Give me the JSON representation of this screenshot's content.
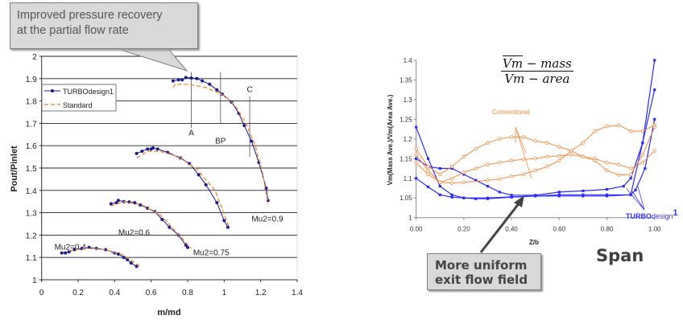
{
  "callouts": {
    "top": [
      "Improved pressure recovery",
      "at the partial flow rate"
    ],
    "bottom": [
      "More uniform",
      "exit flow field"
    ],
    "span": "Span"
  },
  "colors": {
    "turbodesign": "#1a1a8c",
    "standard": "#f58a3a",
    "td_right": "#2a2aff",
    "conventional": "#f58a3a",
    "callout_bg": "#d9d9d9"
  },
  "chart_data": [
    {
      "type": "line",
      "xlabel": "m/md",
      "ylabel": "Pout/Pinlet",
      "xlim": [
        0,
        1.4
      ],
      "ylim": [
        1,
        2
      ],
      "xticks": [
        "0",
        "0.2",
        "0.4",
        "0.6",
        "0.8",
        "1",
        "1.2",
        "1.4"
      ],
      "yticks": [
        "1",
        "1.1",
        "1.2",
        "1.3",
        "1.4",
        "1.5",
        "1.6",
        "1.7",
        "1.8",
        "1.9",
        "2"
      ],
      "grid": "horizontal",
      "legend": {
        "placement": "top-left",
        "entries": [
          "TURBOdesign1",
          "Standard"
        ]
      },
      "annotations": [
        {
          "text": "A",
          "x": 0.82,
          "y_range": [
            1.68,
            1.93
          ]
        },
        {
          "text": "BP",
          "x": 0.98,
          "y_range": [
            1.7,
            1.93
          ]
        },
        {
          "text": "C",
          "x": 1.14,
          "y_range": [
            1.55,
            1.82
          ]
        }
      ],
      "speed_labels": [
        {
          "text": "Mu2=0.9",
          "x": 1.15,
          "y": 1.26
        },
        {
          "text": "Mu2=0.75",
          "x": 0.83,
          "y": 1.11
        },
        {
          "text": "Mu2=0.6",
          "x": 0.42,
          "y": 1.2
        },
        {
          "text": "Mu2=0.4",
          "x": 0.07,
          "y": 1.135
        }
      ],
      "series": [
        {
          "name": "TURBOdesign1",
          "group": "Mu2=0.9",
          "points": [
            [
              0.72,
              1.89
            ],
            [
              0.75,
              1.895
            ],
            [
              0.77,
              1.895
            ],
            [
              0.79,
              1.905
            ],
            [
              0.82,
              1.903
            ],
            [
              0.85,
              1.9
            ],
            [
              0.88,
              1.89
            ],
            [
              0.92,
              1.875
            ],
            [
              0.96,
              1.85
            ],
            [
              0.99,
              1.83
            ],
            [
              1.04,
              1.795
            ],
            [
              1.08,
              1.745
            ],
            [
              1.11,
              1.69
            ],
            [
              1.15,
              1.62
            ],
            [
              1.19,
              1.525
            ],
            [
              1.23,
              1.41
            ],
            [
              1.24,
              1.355
            ]
          ]
        },
        {
          "name": "Standard",
          "group": "Mu2=0.9",
          "points": [
            [
              0.72,
              1.86
            ],
            [
              0.73,
              1.875
            ],
            [
              0.8,
              1.875
            ],
            [
              0.9,
              1.86
            ],
            [
              1.0,
              1.825
            ],
            [
              1.06,
              1.78
            ],
            [
              1.12,
              1.7
            ],
            [
              1.17,
              1.6
            ],
            [
              1.21,
              1.48
            ],
            [
              1.24,
              1.34
            ]
          ]
        },
        {
          "name": "TURBOdesign1",
          "group": "Mu2=0.75",
          "points": [
            [
              0.52,
              1.565
            ],
            [
              0.55,
              1.575
            ],
            [
              0.58,
              1.585
            ],
            [
              0.6,
              1.585
            ],
            [
              0.61,
              1.59
            ],
            [
              0.635,
              1.585
            ],
            [
              0.69,
              1.57
            ],
            [
              0.76,
              1.545
            ],
            [
              0.81,
              1.52
            ],
            [
              0.86,
              1.47
            ],
            [
              0.9,
              1.425
            ],
            [
              0.96,
              1.345
            ],
            [
              1.0,
              1.265
            ],
            [
              1.02,
              1.235
            ]
          ]
        },
        {
          "name": "Standard",
          "group": "Mu2=0.75",
          "points": [
            [
              0.52,
              1.545
            ],
            [
              0.58,
              1.575
            ],
            [
              0.65,
              1.575
            ],
            [
              0.75,
              1.55
            ],
            [
              0.85,
              1.495
            ],
            [
              0.95,
              1.4
            ],
            [
              1.03,
              1.23
            ]
          ]
        },
        {
          "name": "TURBOdesign1",
          "group": "Mu2=0.6",
          "points": [
            [
              0.38,
              1.34
            ],
            [
              0.41,
              1.345
            ],
            [
              0.42,
              1.355
            ],
            [
              0.45,
              1.35
            ],
            [
              0.48,
              1.348
            ],
            [
              0.51,
              1.345
            ],
            [
              0.54,
              1.335
            ],
            [
              0.58,
              1.32
            ],
            [
              0.62,
              1.305
            ],
            [
              0.66,
              1.27
            ],
            [
              0.7,
              1.235
            ],
            [
              0.75,
              1.2
            ],
            [
              0.79,
              1.155
            ],
            [
              0.8,
              1.145
            ]
          ]
        },
        {
          "name": "Standard",
          "group": "Mu2=0.6",
          "points": [
            [
              0.38,
              1.33
            ],
            [
              0.45,
              1.35
            ],
            [
              0.55,
              1.335
            ],
            [
              0.65,
              1.29
            ],
            [
              0.72,
              1.23
            ],
            [
              0.82,
              1.14
            ]
          ]
        },
        {
          "name": "TURBOdesign1",
          "group": "Mu2=0.4",
          "points": [
            [
              0.11,
              1.12
            ],
            [
              0.13,
              1.12
            ],
            [
              0.15,
              1.125
            ],
            [
              0.18,
              1.135
            ],
            [
              0.22,
              1.14
            ],
            [
              0.26,
              1.145
            ],
            [
              0.3,
              1.14
            ],
            [
              0.35,
              1.135
            ],
            [
              0.4,
              1.12
            ],
            [
              0.42,
              1.115
            ],
            [
              0.45,
              1.1
            ],
            [
              0.47,
              1.09
            ],
            [
              0.49,
              1.075
            ],
            [
              0.52,
              1.06
            ]
          ]
        },
        {
          "name": "Standard",
          "group": "Mu2=0.4",
          "points": [
            [
              0.15,
              1.13
            ],
            [
              0.25,
              1.14
            ],
            [
              0.35,
              1.135
            ],
            [
              0.45,
              1.11
            ],
            [
              0.54,
              1.06
            ]
          ]
        }
      ]
    },
    {
      "type": "line",
      "xlabel": "Z/b",
      "ylabel": "Vm(Mass Ave.)/Vm(Area Ave.)",
      "xlim": [
        0,
        1
      ],
      "ylim": [
        1,
        1.4
      ],
      "xticks": [
        "0.00",
        "0.20",
        "0.40",
        "0.60",
        "0.80",
        "1.00"
      ],
      "yticks": [
        "1",
        "1.05",
        "1.1",
        "1.15",
        "1.2",
        "1.25",
        "1.3",
        "1.35",
        "1.4"
      ],
      "grid": "none",
      "formula": {
        "numerator_bar": "Vm",
        "numerator_rest": " − mass",
        "denominator_bar": "Vm",
        "denominator_rest": " − area"
      },
      "group_labels": {
        "conventional": "Conventional",
        "td_bold": "TURBO",
        "td_light": "design",
        "td_sup": "1"
      },
      "series": [
        {
          "group": "TURBOdesign1",
          "points": [
            [
              0,
              1.23
            ],
            [
              0.05,
              1.15
            ],
            [
              0.1,
              1.08
            ],
            [
              0.15,
              1.058
            ],
            [
              0.2,
              1.05
            ],
            [
              0.25,
              1.048
            ],
            [
              0.3,
              1.048
            ],
            [
              0.4,
              1.052
            ],
            [
              0.5,
              1.055
            ],
            [
              0.6,
              1.055
            ],
            [
              0.7,
              1.055
            ],
            [
              0.8,
              1.055
            ],
            [
              0.9,
              1.058
            ],
            [
              0.95,
              1.19
            ],
            [
              1.0,
              1.4
            ]
          ]
        },
        {
          "group": "TURBOdesign1",
          "points": [
            [
              0,
              1.15
            ],
            [
              0.05,
              1.13
            ],
            [
              0.1,
              1.125
            ],
            [
              0.15,
              1.125
            ],
            [
              0.2,
              1.11
            ],
            [
              0.25,
              1.095
            ],
            [
              0.3,
              1.08
            ],
            [
              0.35,
              1.065
            ],
            [
              0.4,
              1.057
            ],
            [
              0.5,
              1.057
            ],
            [
              0.6,
              1.065
            ],
            [
              0.7,
              1.068
            ],
            [
              0.8,
              1.072
            ],
            [
              0.87,
              1.08
            ],
            [
              0.9,
              1.1
            ],
            [
              0.95,
              1.19
            ],
            [
              1.0,
              1.325
            ]
          ]
        },
        {
          "group": "TURBOdesign1",
          "points": [
            [
              0,
              1.1
            ],
            [
              0.05,
              1.078
            ],
            [
              0.1,
              1.058
            ],
            [
              0.15,
              1.052
            ],
            [
              0.2,
              1.05
            ],
            [
              0.3,
              1.05
            ],
            [
              0.4,
              1.053
            ],
            [
              0.5,
              1.055
            ],
            [
              0.6,
              1.058
            ],
            [
              0.7,
              1.058
            ],
            [
              0.8,
              1.058
            ],
            [
              0.9,
              1.058
            ],
            [
              0.92,
              1.07
            ],
            [
              0.96,
              1.125
            ],
            [
              1.0,
              1.25
            ]
          ]
        },
        {
          "group": "Conventional",
          "points": [
            [
              0,
              1.175
            ],
            [
              0.05,
              1.13
            ],
            [
              0.1,
              1.11
            ],
            [
              0.15,
              1.13
            ],
            [
              0.2,
              1.155
            ],
            [
              0.25,
              1.175
            ],
            [
              0.3,
              1.19
            ],
            [
              0.35,
              1.2
            ],
            [
              0.4,
              1.205
            ],
            [
              0.45,
              1.205
            ],
            [
              0.5,
              1.195
            ],
            [
              0.55,
              1.19
            ],
            [
              0.6,
              1.18
            ],
            [
              0.65,
              1.17
            ],
            [
              0.7,
              1.155
            ],
            [
              0.75,
              1.15
            ],
            [
              0.8,
              1.14
            ],
            [
              0.85,
              1.135
            ],
            [
              0.9,
              1.125
            ],
            [
              0.95,
              1.14
            ],
            [
              1.0,
              1.17
            ]
          ]
        },
        {
          "group": "Conventional",
          "points": [
            [
              0,
              1.16
            ],
            [
              0.05,
              1.12
            ],
            [
              0.1,
              1.09
            ],
            [
              0.15,
              1.088
            ],
            [
              0.2,
              1.09
            ],
            [
              0.3,
              1.095
            ],
            [
              0.35,
              1.098
            ],
            [
              0.4,
              1.105
            ],
            [
              0.45,
              1.11
            ],
            [
              0.5,
              1.12
            ],
            [
              0.55,
              1.13
            ],
            [
              0.6,
              1.145
            ],
            [
              0.65,
              1.17
            ],
            [
              0.7,
              1.19
            ],
            [
              0.75,
              1.22
            ],
            [
              0.8,
              1.232
            ],
            [
              0.85,
              1.235
            ],
            [
              0.9,
              1.22
            ],
            [
              0.95,
              1.22
            ],
            [
              1.0,
              1.235
            ]
          ]
        },
        {
          "group": "Conventional",
          "points": [
            [
              0,
              1.14
            ],
            [
              0.05,
              1.11
            ],
            [
              0.1,
              1.09
            ],
            [
              0.15,
              1.1
            ],
            [
              0.2,
              1.115
            ],
            [
              0.25,
              1.125
            ],
            [
              0.3,
              1.135
            ],
            [
              0.35,
              1.14
            ],
            [
              0.4,
              1.145
            ],
            [
              0.45,
              1.148
            ],
            [
              0.5,
              1.15
            ],
            [
              0.55,
              1.155
            ],
            [
              0.6,
              1.157
            ],
            [
              0.65,
              1.16
            ],
            [
              0.7,
              1.155
            ],
            [
              0.75,
              1.145
            ],
            [
              0.8,
              1.12
            ],
            [
              0.85,
              1.108
            ],
            [
              0.9,
              1.11
            ],
            [
              0.95,
              1.16
            ],
            [
              1.0,
              1.23
            ]
          ]
        }
      ]
    }
  ]
}
